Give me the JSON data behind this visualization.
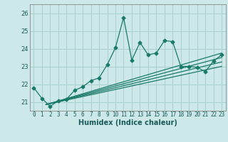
{
  "xlabel": "Humidex (Indice chaleur)",
  "background_color": "#cce8e8",
  "grid_color": "#aacece",
  "line_color": "#1a7a6a",
  "xlim": [
    -0.5,
    23.5
  ],
  "ylim": [
    20.5,
    26.5
  ],
  "xticks": [
    0,
    1,
    2,
    3,
    4,
    5,
    6,
    7,
    8,
    9,
    10,
    11,
    12,
    13,
    14,
    15,
    16,
    17,
    18,
    19,
    20,
    21,
    22,
    23
  ],
  "yticks": [
    21,
    22,
    23,
    24,
    25,
    26
  ],
  "main_x": [
    0,
    1,
    2,
    3,
    4,
    5,
    6,
    7,
    8,
    9,
    10,
    11,
    12,
    13,
    14,
    15,
    16,
    17,
    18,
    19,
    20,
    21,
    22,
    23
  ],
  "main_y": [
    21.8,
    21.2,
    20.75,
    21.05,
    21.15,
    21.65,
    21.85,
    22.2,
    22.35,
    23.1,
    24.05,
    25.75,
    23.35,
    24.35,
    23.65,
    23.75,
    24.45,
    24.4,
    23.0,
    23.0,
    22.95,
    22.7,
    23.3,
    23.65
  ],
  "linear_lines": [
    {
      "x0": 1.5,
      "y0": 20.85,
      "x1": 23,
      "y1": 23.75
    },
    {
      "x0": 1.5,
      "y0": 20.85,
      "x1": 23,
      "y1": 23.5
    },
    {
      "x0": 1.5,
      "y0": 20.85,
      "x1": 23,
      "y1": 23.25
    },
    {
      "x0": 1.5,
      "y0": 20.85,
      "x1": 23,
      "y1": 23.0
    }
  ],
  "tick_fontsize": 5.5,
  "xlabel_fontsize": 7
}
